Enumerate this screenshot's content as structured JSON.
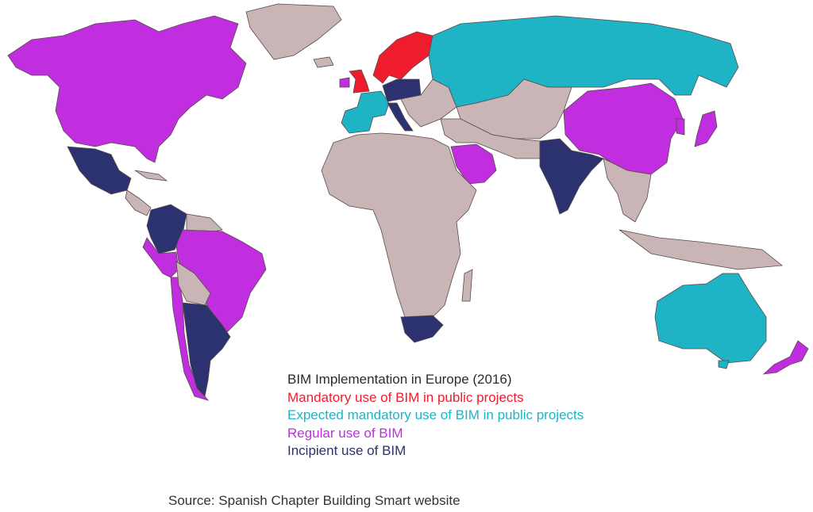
{
  "legend": {
    "title": "BIM Implementation in Europe (2016)",
    "title_color": "#2b2b2b",
    "items": [
      {
        "label": "Mandatory use of BIM in public projects",
        "color": "#ee1c2c"
      },
      {
        "label": "Expected mandatory use of BIM in public projects",
        "color": "#1fb3c6"
      },
      {
        "label": "Regular use of BIM",
        "color": "#c02ee0"
      },
      {
        "label": "Incipient use of BIM",
        "color": "#2c3170"
      }
    ]
  },
  "other_land_color": "#c9b5b5",
  "source": "Source: Spanish Chapter Building Smart website"
}
